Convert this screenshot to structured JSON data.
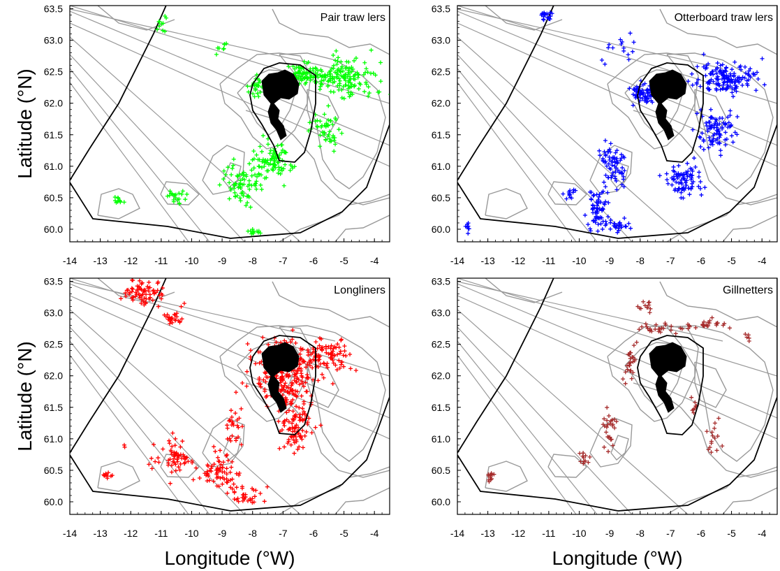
{
  "figure": {
    "xlabel": "Longitude (°W)",
    "ylabel": "Latitude (°N)",
    "x_ticks": [
      "-14",
      "-13",
      "-12",
      "-11",
      "-10",
      "-9",
      "-8",
      "-7",
      "-6",
      "-5",
      "-4"
    ],
    "y_ticks": [
      "63.5",
      "63.0",
      "62.5",
      "62.0",
      "61.5",
      "61.0",
      "60.5",
      "60.0"
    ]
  },
  "colors": {
    "frame": "#000000",
    "contour": "#999999",
    "land": "#000000",
    "pair_trawlers": "#00ff00",
    "otterboard_trawlers": "#0000ff",
    "longliners": "#ff0000",
    "gillnetters": "#a52a2a"
  },
  "chart_data": [
    {
      "type": "scatter",
      "title": "Pair traw lers",
      "color": "#00ff00",
      "xlim": [
        -14,
        -3.5
      ],
      "ylim": [
        59.8,
        63.55
      ],
      "marker": "+",
      "clusters": [
        {
          "lon": -5.0,
          "lat": 62.4,
          "spread": [
            1.1,
            0.3
          ],
          "n": 150
        },
        {
          "lon": -6.3,
          "lat": 62.45,
          "spread": [
            0.6,
            0.15
          ],
          "n": 70
        },
        {
          "lon": -7.3,
          "lat": 61.1,
          "spread": [
            0.7,
            0.3
          ],
          "n": 90
        },
        {
          "lon": -8.4,
          "lat": 60.7,
          "spread": [
            0.6,
            0.35
          ],
          "n": 70
        },
        {
          "lon": -5.6,
          "lat": 61.6,
          "spread": [
            0.5,
            0.25
          ],
          "n": 50
        },
        {
          "lon": -7.8,
          "lat": 62.25,
          "spread": [
            0.35,
            0.2
          ],
          "n": 30
        },
        {
          "lon": -10.5,
          "lat": 60.5,
          "spread": [
            0.3,
            0.12
          ],
          "n": 20
        },
        {
          "lon": -12.4,
          "lat": 60.45,
          "spread": [
            0.15,
            0.08
          ],
          "n": 10
        },
        {
          "lon": -11.0,
          "lat": 63.25,
          "spread": [
            0.25,
            0.15
          ],
          "n": 10
        },
        {
          "lon": -8.0,
          "lat": 59.95,
          "spread": [
            0.25,
            0.05
          ],
          "n": 12
        },
        {
          "lon": -9.0,
          "lat": 62.9,
          "spread": [
            0.3,
            0.1
          ],
          "n": 8
        }
      ]
    },
    {
      "type": "scatter",
      "title": "Otterboard traw lers",
      "color": "#0000ff",
      "xlim": [
        -14,
        -3.5
      ],
      "ylim": [
        59.8,
        63.55
      ],
      "marker": "+",
      "clusters": [
        {
          "lon": -5.1,
          "lat": 62.4,
          "spread": [
            1.0,
            0.25
          ],
          "n": 150
        },
        {
          "lon": -7.9,
          "lat": 62.15,
          "spread": [
            0.5,
            0.15
          ],
          "n": 70
        },
        {
          "lon": -5.5,
          "lat": 61.6,
          "spread": [
            0.6,
            0.35
          ],
          "n": 90
        },
        {
          "lon": -6.5,
          "lat": 60.8,
          "spread": [
            0.6,
            0.25
          ],
          "n": 80
        },
        {
          "lon": -8.9,
          "lat": 61.0,
          "spread": [
            0.4,
            0.35
          ],
          "n": 70
        },
        {
          "lon": -9.4,
          "lat": 60.3,
          "spread": [
            0.35,
            0.3
          ],
          "n": 60
        },
        {
          "lon": -8.8,
          "lat": 60.05,
          "spread": [
            0.4,
            0.12
          ],
          "n": 30
        },
        {
          "lon": -11.1,
          "lat": 63.4,
          "spread": [
            0.2,
            0.08
          ],
          "n": 20
        },
        {
          "lon": -13.7,
          "lat": 60.05,
          "spread": [
            0.1,
            0.08
          ],
          "n": 8
        },
        {
          "lon": -8.5,
          "lat": 62.8,
          "spread": [
            0.8,
            0.3
          ],
          "n": 15
        },
        {
          "lon": -10.3,
          "lat": 60.55,
          "spread": [
            0.2,
            0.1
          ],
          "n": 12
        }
      ]
    },
    {
      "type": "scatter",
      "title": "Longliners",
      "color": "#ff0000",
      "xlim": [
        -14,
        -3.5
      ],
      "ylim": [
        59.8,
        63.55
      ],
      "marker": "+",
      "clusters": [
        {
          "lon": -6.9,
          "lat": 62.05,
          "spread": [
            1.1,
            0.5
          ],
          "n": 260
        },
        {
          "lon": -5.5,
          "lat": 62.3,
          "spread": [
            0.7,
            0.25
          ],
          "n": 80
        },
        {
          "lon": -6.6,
          "lat": 61.2,
          "spread": [
            0.6,
            0.4
          ],
          "n": 90
        },
        {
          "lon": -11.6,
          "lat": 63.3,
          "spread": [
            0.7,
            0.2
          ],
          "n": 70
        },
        {
          "lon": -10.6,
          "lat": 62.95,
          "spread": [
            0.3,
            0.15
          ],
          "n": 25
        },
        {
          "lon": -10.6,
          "lat": 60.7,
          "spread": [
            0.6,
            0.3
          ],
          "n": 60
        },
        {
          "lon": -9.1,
          "lat": 60.45,
          "spread": [
            0.6,
            0.3
          ],
          "n": 70
        },
        {
          "lon": -8.2,
          "lat": 60.1,
          "spread": [
            0.6,
            0.15
          ],
          "n": 30
        },
        {
          "lon": -8.6,
          "lat": 61.2,
          "spread": [
            0.3,
            0.3
          ],
          "n": 25
        },
        {
          "lon": -12.8,
          "lat": 60.4,
          "spread": [
            0.2,
            0.08
          ],
          "n": 10
        },
        {
          "lon": -12.2,
          "lat": 60.9,
          "spread": [
            0.05,
            0.05
          ],
          "n": 2
        }
      ]
    },
    {
      "type": "scatter",
      "title": "Gillnetters",
      "color": "#a52a2a",
      "xlim": [
        -14,
        -3.5
      ],
      "ylim": [
        59.8,
        63.55
      ],
      "marker": "+",
      "clusters": [
        {
          "lon": -8.3,
          "lat": 62.2,
          "spread": [
            0.25,
            0.3
          ],
          "n": 25
        },
        {
          "lon": -7.4,
          "lat": 62.75,
          "spread": [
            0.7,
            0.1
          ],
          "n": 25
        },
        {
          "lon": -5.8,
          "lat": 62.8,
          "spread": [
            0.8,
            0.1
          ],
          "n": 25
        },
        {
          "lon": -7.8,
          "lat": 63.1,
          "spread": [
            0.3,
            0.1
          ],
          "n": 12
        },
        {
          "lon": -9.0,
          "lat": 61.2,
          "spread": [
            0.25,
            0.35
          ],
          "n": 25
        },
        {
          "lon": -9.8,
          "lat": 60.7,
          "spread": [
            0.2,
            0.15
          ],
          "n": 12
        },
        {
          "lon": -12.9,
          "lat": 60.4,
          "spread": [
            0.15,
            0.1
          ],
          "n": 12
        },
        {
          "lon": -5.6,
          "lat": 61.0,
          "spread": [
            0.3,
            0.3
          ],
          "n": 15
        },
        {
          "lon": -6.2,
          "lat": 61.5,
          "spread": [
            0.15,
            0.2
          ],
          "n": 8
        },
        {
          "lon": -4.5,
          "lat": 62.6,
          "spread": [
            0.15,
            0.15
          ],
          "n": 5
        }
      ]
    }
  ]
}
